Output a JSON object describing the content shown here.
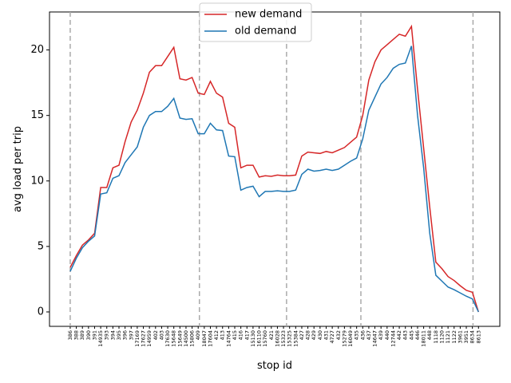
{
  "chart_data": {
    "type": "line",
    "x_label": "stop id",
    "y_label": "avg load per trip",
    "categories": [
      "386",
      "388",
      "389",
      "390",
      "391",
      "14935",
      "393",
      "394",
      "395",
      "396",
      "397",
      "17169",
      "17627",
      "14959",
      "402",
      "403",
      "17630",
      "15648",
      "15649",
      "14500",
      "15806",
      "409",
      "18047",
      "17604",
      "412",
      "413",
      "14764",
      "415",
      "416",
      "417",
      "15130",
      "16110",
      "15760",
      "421",
      "16028",
      "15323",
      "15325",
      "15384",
      "427",
      "428",
      "429",
      "430",
      "431",
      "4727",
      "432",
      "15279",
      "16049",
      "435",
      "436",
      "437",
      "14647",
      "439",
      "440",
      "12744",
      "442",
      "443",
      "445",
      "446",
      "18011",
      "448",
      "1118",
      "1120",
      "1121",
      "1122",
      "3961",
      "3951",
      "8634",
      "8613"
    ],
    "series": [
      {
        "name": "new demand",
        "color": "#d62728",
        "values": [
          3.4,
          4.3,
          5.1,
          5.5,
          6.0,
          9.5,
          9.5,
          11.0,
          11.2,
          13.0,
          14.5,
          15.4,
          16.7,
          18.3,
          18.8,
          18.8,
          19.5,
          20.2,
          17.8,
          17.7,
          17.9,
          16.7,
          16.6,
          17.6,
          16.7,
          16.4,
          14.4,
          14.1,
          11.0,
          11.2,
          11.2,
          10.3,
          10.4,
          10.35,
          10.45,
          10.4,
          10.4,
          10.45,
          11.9,
          12.2,
          12.15,
          12.1,
          12.25,
          12.15,
          12.35,
          12.55,
          12.95,
          13.35,
          15.0,
          17.7,
          19.1,
          20.0,
          20.4,
          20.8,
          21.2,
          21.05,
          21.8,
          17.0,
          12.5,
          8.0,
          3.8,
          3.3,
          2.7,
          2.4,
          2.0,
          1.65,
          1.5,
          0
        ]
      },
      {
        "name": "old demand",
        "color": "#1f77b4",
        "values": [
          3.1,
          4.1,
          4.9,
          5.4,
          5.8,
          9.0,
          9.1,
          10.2,
          10.4,
          11.4,
          12.0,
          12.6,
          14.1,
          15.0,
          15.3,
          15.3,
          15.7,
          16.3,
          14.8,
          14.7,
          14.75,
          13.6,
          13.6,
          14.4,
          13.9,
          13.85,
          11.9,
          11.85,
          9.3,
          9.5,
          9.6,
          8.8,
          9.2,
          9.2,
          9.25,
          9.2,
          9.2,
          9.3,
          10.5,
          10.9,
          10.75,
          10.8,
          10.9,
          10.8,
          10.9,
          11.2,
          11.5,
          11.75,
          13.2,
          15.4,
          16.4,
          17.4,
          17.9,
          18.6,
          18.9,
          19.0,
          20.3,
          15.0,
          11.0,
          6.0,
          2.8,
          2.35,
          1.9,
          1.7,
          1.45,
          1.2,
          1.0,
          0
        ]
      }
    ],
    "vlines": [
      0,
      21.2,
      35.5,
      47.7,
      66.1
    ],
    "xlim": [
      -3.4,
      70.5
    ],
    "ylim": [
      -1.1,
      22.9
    ],
    "yticks": [
      0,
      5,
      10,
      15,
      20
    ],
    "legend": "upper center"
  }
}
